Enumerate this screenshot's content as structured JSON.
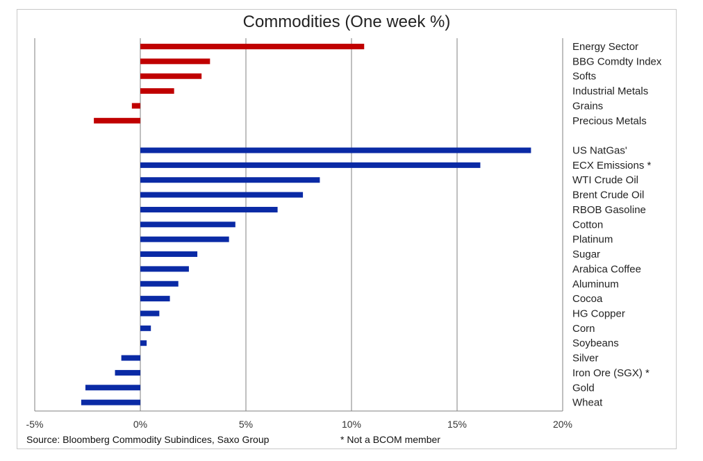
{
  "chart_data": {
    "type": "bar",
    "orientation": "horizontal",
    "title": "Commodities (One week %)",
    "xlim": [
      -5,
      20
    ],
    "x_ticks": [
      "-5%",
      "0%",
      "5%",
      "10%",
      "15%",
      "20%"
    ],
    "x_tick_values": [
      -5,
      0,
      5,
      10,
      15,
      20
    ],
    "grid": "vertical lines",
    "legend": "none",
    "series": [
      {
        "color": "#c00000",
        "categories": [
          "Energy Sector",
          "BBG Comdty Index",
          "Softs",
          "Industrial Metals",
          "Grains",
          "Precious Metals"
        ],
        "values": [
          10.6,
          3.3,
          2.9,
          1.6,
          -0.4,
          -2.2
        ]
      },
      {
        "color": "#0a2aa5",
        "categories": [
          "US NatGas'",
          "ECX Emissions *",
          "WTI Crude Oil",
          "Brent Crude Oil",
          "RBOB Gasoline",
          "Cotton",
          "Platinum",
          "Sugar",
          "Arabica Coffee",
          "Aluminum",
          "Cocoa",
          "HG Copper",
          "Corn",
          "Soybeans",
          "Silver",
          "Iron Ore (SGX) *",
          "Gold",
          "Wheat"
        ],
        "values": [
          18.5,
          16.1,
          8.5,
          7.7,
          6.5,
          4.5,
          4.2,
          2.7,
          2.3,
          1.8,
          1.4,
          0.9,
          0.5,
          0.3,
          -0.9,
          -1.2,
          -2.6,
          -2.8
        ]
      }
    ]
  },
  "footer": {
    "source": "Source: Bloomberg Commodity Subindices, Saxo Group",
    "note": "* Not a BCOM member"
  }
}
